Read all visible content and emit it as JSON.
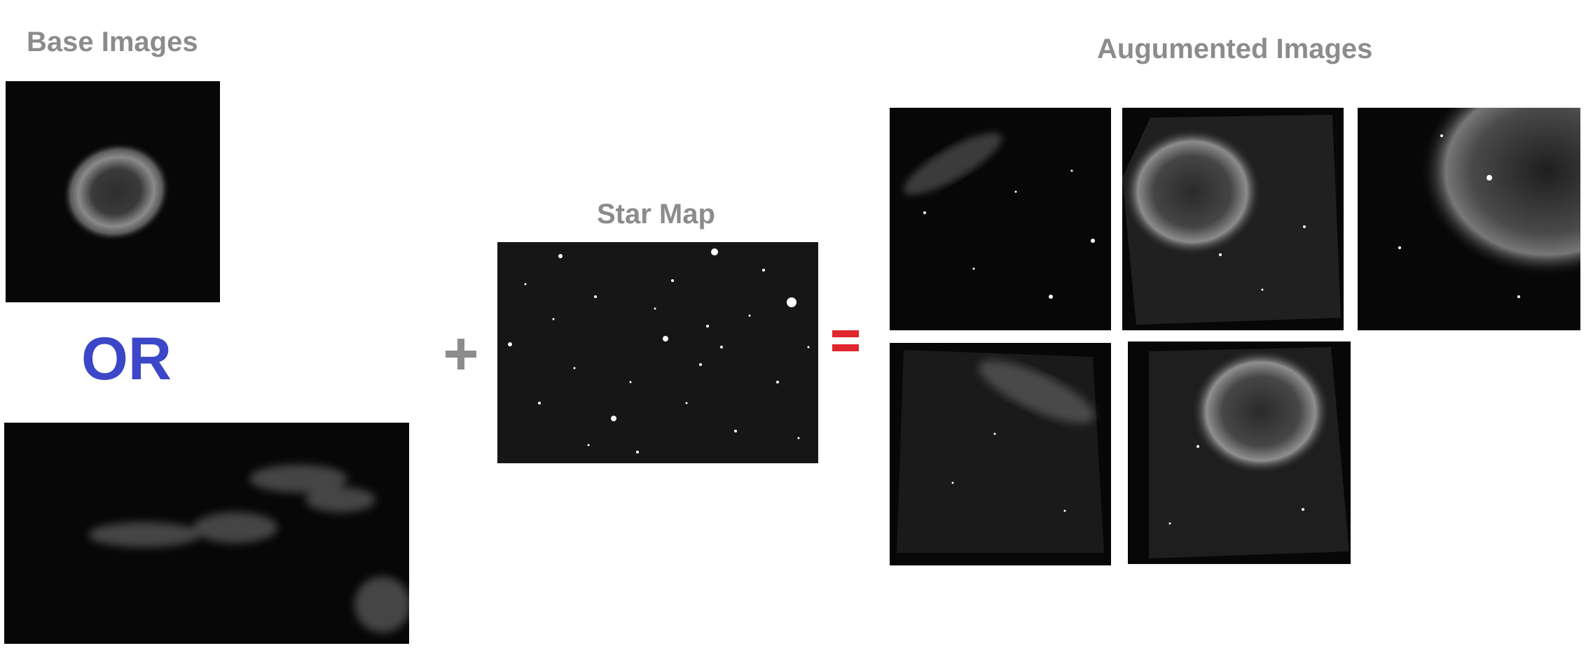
{
  "labels": {
    "base_images": "Base Images",
    "star_map": "Star Map",
    "augmented_images": "Augumented Images",
    "or": "OR"
  },
  "colors": {
    "label_gray": "#8c8c8c",
    "or_blue": "#3c46c8",
    "plus_gray": "#8c8c8c",
    "equals_red": "#e0262e",
    "panel_black": "#070707"
  },
  "panels": [
    {
      "name": "base-image-nebula",
      "icon": "helix-nebula"
    },
    {
      "name": "base-image-cloud",
      "icon": "dust-cloud"
    },
    {
      "name": "star-map-image",
      "icon": "star-field"
    },
    {
      "name": "augmented-image-1",
      "icon": "cloud-with-stars"
    },
    {
      "name": "augmented-image-2",
      "icon": "nebula-with-stars"
    },
    {
      "name": "augmented-image-3",
      "icon": "nebula-closeup"
    },
    {
      "name": "augmented-image-4",
      "icon": "cloud-rotated"
    },
    {
      "name": "augmented-image-5",
      "icon": "nebula-rotated"
    }
  ]
}
